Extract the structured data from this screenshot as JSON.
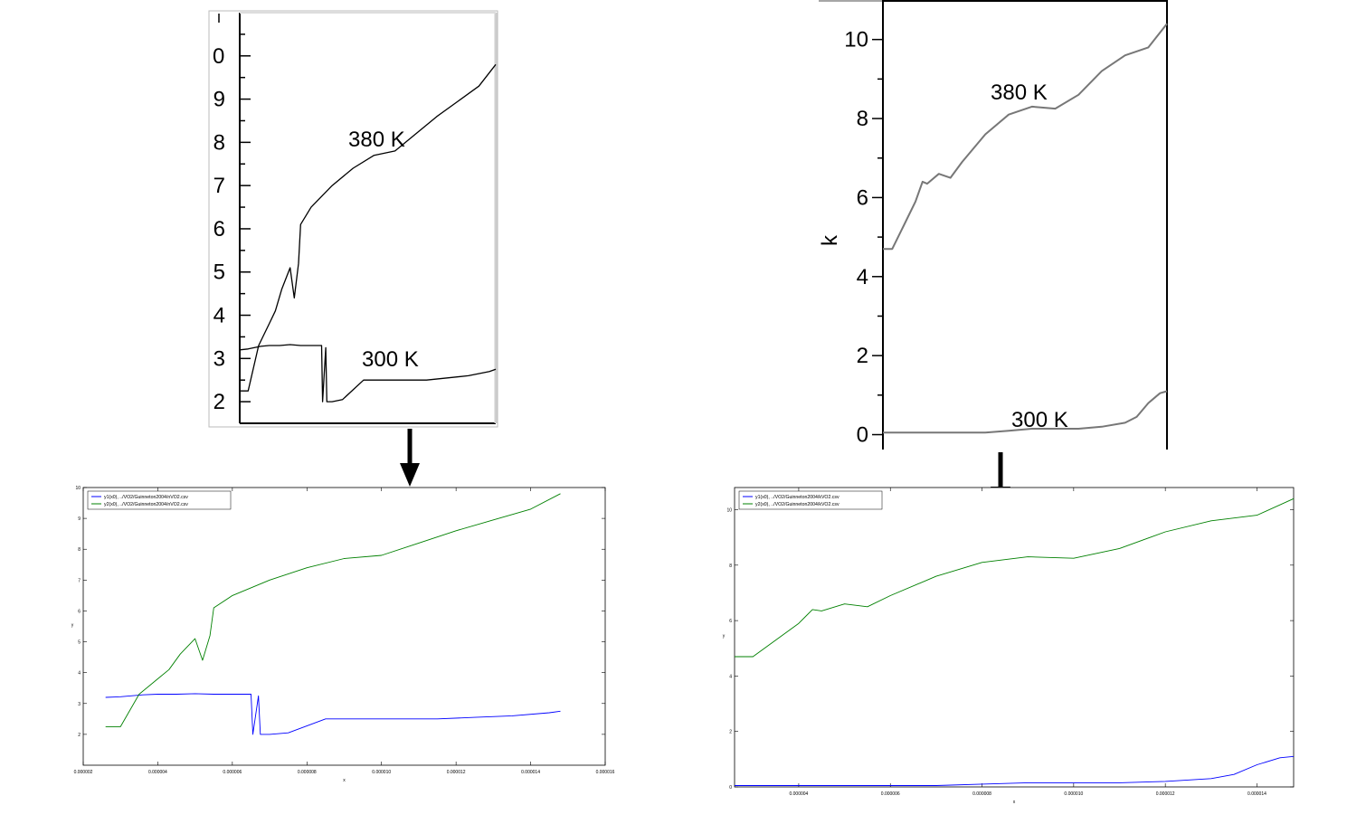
{
  "figure": {
    "arrow_color": "#000000",
    "tick_color": "#000000",
    "ref_line_color": "#000000",
    "ref_line_color_k": "#777777",
    "digitized_color_y1": "#0000ff",
    "digitized_color_y2": "#008000",
    "scan_border_color": "#bbbbbb"
  },
  "chart_data": [
    {
      "id": "n-reference",
      "type": "line",
      "title": "",
      "xlabel": "",
      "ylabel": "",
      "ylim": [
        1.5,
        11.0
      ],
      "yticks": [
        2,
        3,
        4,
        5,
        6,
        7,
        8,
        9
      ],
      "ytick_labels": [
        "2",
        "3",
        "4",
        "5",
        "6",
        "7",
        "8",
        "9"
      ],
      "top_tick_label": "0",
      "grid": false,
      "annotations": [
        "380 K",
        "300 K"
      ],
      "series": [
        {
          "x": [
            2.6e-06,
            3e-06,
            3.6e-06,
            4e-06,
            4.5e-06,
            5e-06,
            5.5e-06,
            6e-06,
            6.5e-06,
            6.55e-06,
            6.7e-06,
            6.75e-06,
            7e-06,
            7.5e-06,
            8.5e-06,
            9.5e-06,
            1.05e-05,
            1.15e-05,
            1.25e-05,
            1.35e-05,
            1.45e-05,
            1.48e-05
          ],
          "values": [
            3.2,
            3.22,
            3.28,
            3.3,
            3.3,
            3.32,
            3.3,
            3.3,
            3.3,
            2.0,
            3.25,
            2.0,
            2.0,
            2.05,
            2.5,
            2.5,
            2.5,
            2.5,
            2.55,
            2.6,
            2.7,
            2.75
          ]
        },
        {
          "x": [
            2.6e-06,
            3e-06,
            3.5e-06,
            4e-06,
            4.3e-06,
            4.6e-06,
            5e-06,
            5.2e-06,
            5.4e-06,
            5.5e-06,
            6e-06,
            7e-06,
            8e-06,
            9e-06,
            1e-05,
            1.1e-05,
            1.2e-05,
            1.3e-05,
            1.4e-05,
            1.48e-05
          ],
          "values": [
            2.25,
            2.25,
            3.3,
            3.8,
            4.1,
            4.6,
            5.1,
            4.4,
            5.2,
            6.1,
            6.5,
            7.0,
            7.4,
            7.7,
            7.8,
            8.2,
            8.6,
            8.95,
            9.3,
            9.8
          ]
        }
      ]
    },
    {
      "id": "n-digitized",
      "type": "line",
      "title": "",
      "xlabel": "x",
      "ylabel": "y",
      "xlim": [
        2e-06,
        1.6e-05
      ],
      "ylim": [
        1.0,
        10.0
      ],
      "xticks": [
        2e-06,
        4e-06,
        6e-06,
        8e-06,
        1e-05,
        1.2e-05,
        1.4e-05,
        1.6e-05
      ],
      "xtick_labels": [
        "0.000002",
        "0.000004",
        "0.000006",
        "0.000008",
        "0.000010",
        "0.000012",
        "0.000014",
        "0.000016"
      ],
      "yticks": [
        2,
        3,
        4,
        5,
        6,
        7,
        8,
        9,
        10
      ],
      "ytick_labels": [
        "2",
        "3",
        "4",
        "5",
        "6",
        "7",
        "8",
        "9",
        "10"
      ],
      "grid": false,
      "legend": "top-left",
      "series": [
        {
          "name": "y1(x0), ../VO2/Guinneton2004/nVO2.csv",
          "x": [
            2.6e-06,
            3e-06,
            3.6e-06,
            4e-06,
            4.5e-06,
            5e-06,
            5.5e-06,
            6e-06,
            6.5e-06,
            6.55e-06,
            6.7e-06,
            6.75e-06,
            7e-06,
            7.5e-06,
            8.5e-06,
            9.5e-06,
            1.05e-05,
            1.15e-05,
            1.25e-05,
            1.35e-05,
            1.45e-05,
            1.48e-05
          ],
          "values": [
            3.2,
            3.22,
            3.28,
            3.3,
            3.3,
            3.32,
            3.3,
            3.3,
            3.3,
            2.0,
            3.25,
            2.0,
            2.0,
            2.05,
            2.5,
            2.5,
            2.5,
            2.5,
            2.55,
            2.6,
            2.7,
            2.75
          ]
        },
        {
          "name": "y2(x0), ../VO2/Guinneton2004/nVO2.csv",
          "x": [
            2.6e-06,
            3e-06,
            3.5e-06,
            4e-06,
            4.3e-06,
            4.6e-06,
            5e-06,
            5.2e-06,
            5.4e-06,
            5.5e-06,
            6e-06,
            7e-06,
            8e-06,
            9e-06,
            1e-05,
            1.1e-05,
            1.2e-05,
            1.3e-05,
            1.4e-05,
            1.48e-05
          ],
          "values": [
            2.25,
            2.25,
            3.3,
            3.8,
            4.1,
            4.6,
            5.1,
            4.4,
            5.2,
            6.1,
            6.5,
            7.0,
            7.4,
            7.7,
            7.8,
            8.2,
            8.6,
            8.95,
            9.3,
            9.8
          ]
        }
      ]
    },
    {
      "id": "k-reference",
      "type": "line",
      "title": "",
      "xlabel": "",
      "ylabel": "k",
      "ylim": [
        0,
        11
      ],
      "yticks": [
        0,
        2,
        4,
        6,
        8,
        10
      ],
      "ytick_labels": [
        "0",
        "2",
        "4",
        "6",
        "8",
        "10"
      ],
      "grid": false,
      "annotations": [
        "380 K",
        "300 K"
      ],
      "series": [
        {
          "x": [
            2.6e-06,
            4e-06,
            5e-06,
            6e-06,
            7e-06,
            8e-06,
            9e-06,
            1e-05,
            1.1e-05,
            1.2e-05,
            1.3e-05,
            1.35e-05,
            1.4e-05,
            1.45e-05,
            1.48e-05
          ],
          "values": [
            0.05,
            0.05,
            0.05,
            0.05,
            0.05,
            0.1,
            0.15,
            0.15,
            0.15,
            0.2,
            0.3,
            0.45,
            0.8,
            1.05,
            1.1
          ]
        },
        {
          "x": [
            2.6e-06,
            3e-06,
            3.5e-06,
            4e-06,
            4.3e-06,
            4.5e-06,
            5e-06,
            5.5e-06,
            6e-06,
            7e-06,
            8e-06,
            9e-06,
            1e-05,
            1.1e-05,
            1.2e-05,
            1.3e-05,
            1.4e-05,
            1.48e-05
          ],
          "values": [
            4.7,
            4.7,
            5.3,
            5.9,
            6.4,
            6.35,
            6.6,
            6.5,
            6.9,
            7.6,
            8.1,
            8.3,
            8.25,
            8.6,
            9.2,
            9.6,
            9.8,
            10.4
          ]
        }
      ]
    },
    {
      "id": "k-digitized",
      "type": "line",
      "title": "",
      "xlabel": "x",
      "ylabel": "y",
      "xlim": [
        2.6e-06,
        1.48e-05
      ],
      "ylim": [
        0,
        10.8
      ],
      "xticks": [
        4e-06,
        6e-06,
        8e-06,
        1e-05,
        1.2e-05,
        1.4e-05
      ],
      "xtick_labels": [
        "0.000004",
        "0.000006",
        "0.000008",
        "0.000010",
        "0.000012",
        "0.000014"
      ],
      "yticks": [
        0,
        2,
        4,
        6,
        8,
        10
      ],
      "ytick_labels": [
        "0",
        "2",
        "4",
        "6",
        "8",
        "10"
      ],
      "grid": false,
      "legend": "top-left",
      "series": [
        {
          "name": "y1(x0), ../VO2/Guinneton2004/kVO2.csv",
          "x": [
            2.6e-06,
            4e-06,
            5e-06,
            6e-06,
            7e-06,
            8e-06,
            9e-06,
            1e-05,
            1.1e-05,
            1.2e-05,
            1.3e-05,
            1.35e-05,
            1.4e-05,
            1.45e-05,
            1.48e-05
          ],
          "values": [
            0.05,
            0.05,
            0.05,
            0.05,
            0.05,
            0.1,
            0.15,
            0.15,
            0.15,
            0.2,
            0.3,
            0.45,
            0.8,
            1.05,
            1.1
          ]
        },
        {
          "name": "y2(x0), ../VO2/Guinneton2004/kVO2.csv",
          "x": [
            2.6e-06,
            3e-06,
            3.5e-06,
            4e-06,
            4.3e-06,
            4.5e-06,
            5e-06,
            5.5e-06,
            6e-06,
            7e-06,
            8e-06,
            9e-06,
            1e-05,
            1.1e-05,
            1.2e-05,
            1.3e-05,
            1.4e-05,
            1.48e-05
          ],
          "values": [
            4.7,
            4.7,
            5.3,
            5.9,
            6.4,
            6.35,
            6.6,
            6.5,
            6.9,
            7.6,
            8.1,
            8.3,
            8.25,
            8.6,
            9.2,
            9.6,
            9.8,
            10.4
          ]
        }
      ]
    }
  ]
}
